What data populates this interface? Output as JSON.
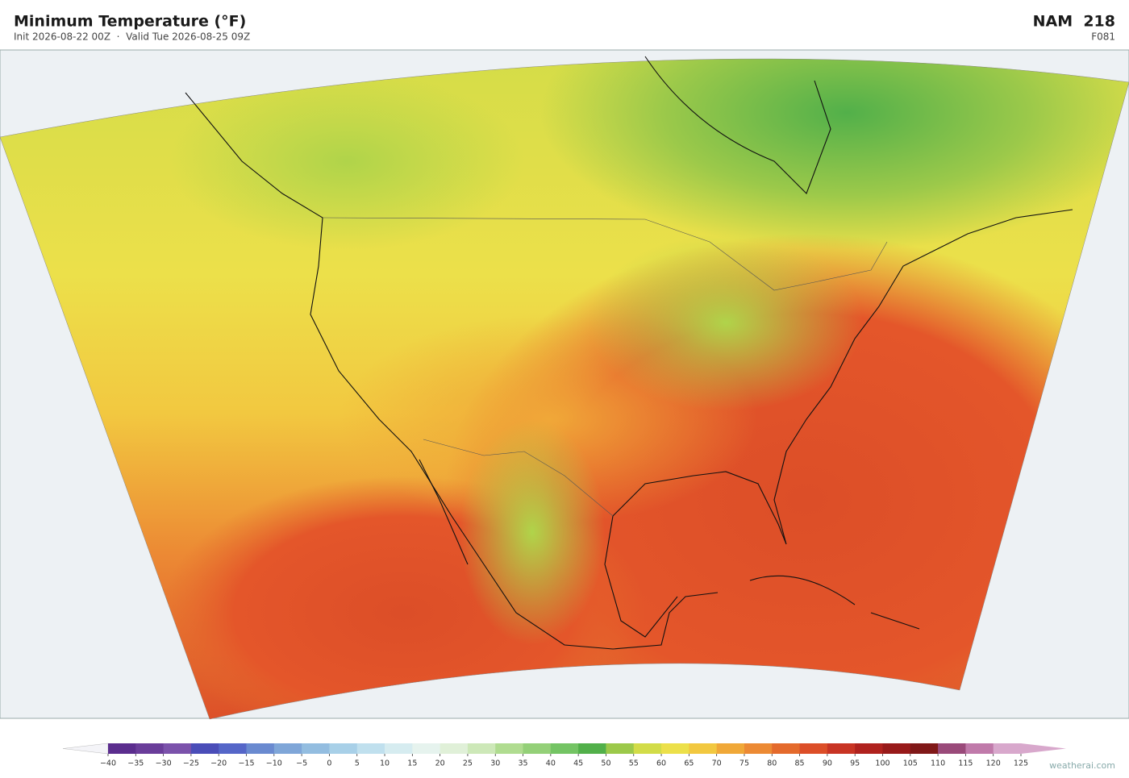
{
  "header": {
    "title": "Minimum Temperature  (°F)",
    "subtitle": "Init 2026-08-22 00Z  ·  Valid Tue 2026-08-25 09Z",
    "model": "NAM  218",
    "forecast_hour": "F081"
  },
  "colorbar": {
    "ticks": [
      {
        "value": -40,
        "label": "−40"
      },
      {
        "value": -35,
        "label": "−35"
      },
      {
        "value": -30,
        "label": "−30"
      },
      {
        "value": -25,
        "label": "−25"
      },
      {
        "value": -20,
        "label": "−20"
      },
      {
        "value": -15,
        "label": "−15"
      },
      {
        "value": -10,
        "label": "−10"
      },
      {
        "value": -5,
        "label": "−5"
      },
      0,
      5,
      10,
      15,
      20,
      25,
      30,
      35,
      40,
      45,
      50,
      55,
      60,
      65,
      70,
      75,
      80,
      85,
      90,
      95,
      100,
      105,
      110,
      115,
      120,
      125
    ],
    "colors": [
      "#5b2d8e",
      "#6a3d9a",
      "#7b52ab",
      "#4a4db8",
      "#5566c8",
      "#6a8ad0",
      "#7fa6d8",
      "#93bde0",
      "#a8d0e8",
      "#c0e0ee",
      "#d6ecf0",
      "#e6f3ee",
      "#e0f0d8",
      "#cde8b8",
      "#b0dc90",
      "#94d078",
      "#74c464",
      "#52b04a",
      "#9cc94a",
      "#d2dc48",
      "#ece04a",
      "#f2c840",
      "#f0a838",
      "#ec8a34",
      "#e46a2c",
      "#dc4e28",
      "#c83424",
      "#b0221e",
      "#981a1a",
      "#801818",
      "#9a4a7a",
      "#c07aaa",
      "#d8a8cc"
    ],
    "under_color": "#f4f4f8",
    "over_color": "#d8a8cc"
  },
  "watermark": "weatherai.com"
}
